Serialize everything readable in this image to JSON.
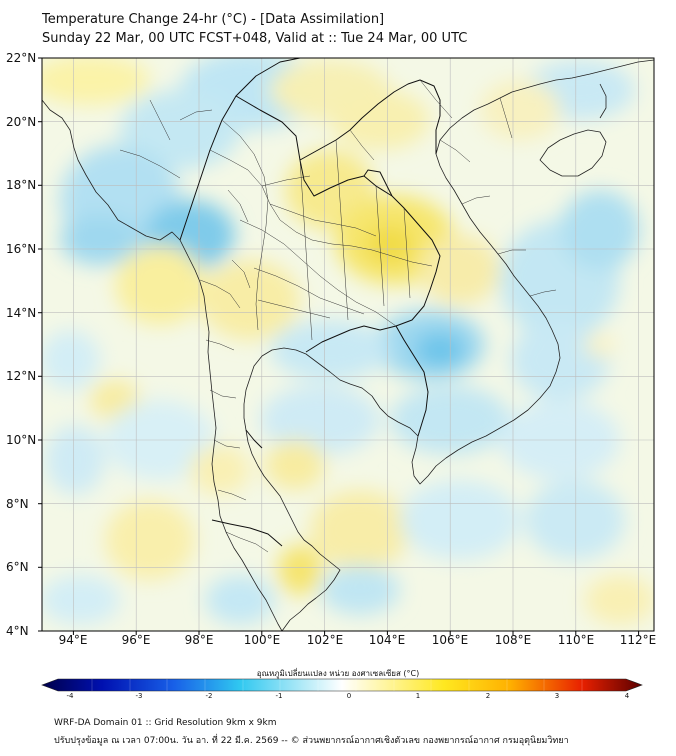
{
  "header": {
    "title_line1": "Temperature Change 24-hr (°C) - [Data Assimilation]",
    "title_line2": "Sunday 22 Mar, 00 UTC FCST+048, Valid at :: Tue 24 Mar, 00 UTC"
  },
  "map": {
    "lat_range": [
      4,
      22
    ],
    "lon_range": [
      93,
      112.5
    ],
    "lat_labels": [
      "22°N",
      "20°N",
      "18°N",
      "16°N",
      "14°N",
      "12°N",
      "10°N",
      "8°N",
      "6°N",
      "4°N"
    ],
    "lon_labels": [
      "94°E",
      "96°E",
      "98°E",
      "100°E",
      "102°E",
      "104°E",
      "106°E",
      "108°E",
      "110°E",
      "112°E"
    ]
  },
  "colorbar": {
    "title": "อุณหภูมิเปลี่ยนแปลง หน่วย องศาเซลเซียส (°C)",
    "range": [
      -4,
      4
    ],
    "ticks": [
      "-4",
      "-3",
      "-2",
      "-1",
      "0",
      "1",
      "2",
      "3",
      "4"
    ],
    "colors": {
      "cold_extreme": "#00004a",
      "cold": "#1020d0",
      "cool": "#30c0ee",
      "neutral": "#ffffff",
      "warm": "#ffee20",
      "hot": "#ff7010",
      "hot_extreme": "#5a0000"
    }
  },
  "footer": {
    "line1": "WRF-DA Domain 01 :: Grid Resolution 9km x 9km",
    "line2": "ปรับปรุงข้อมูล ณ เวลา 07:00น. วัน อา. ที่ 22 มี.ค. 2569 -- © ส่วนพยากรณ์อากาศเชิงตัวเลข กองพยากรณ์อากาศ กรมอุตุนิยมวิทยา"
  }
}
